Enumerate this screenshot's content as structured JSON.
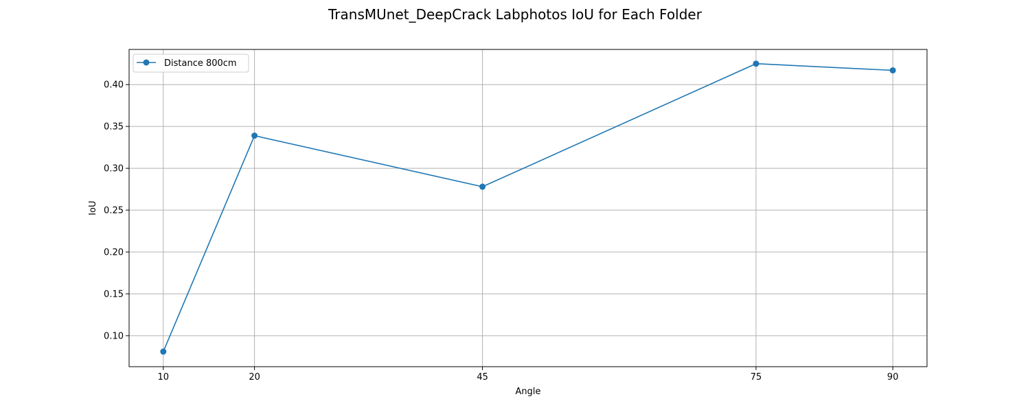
{
  "chart_data": {
    "type": "line",
    "title": "TransMUnet_DeepCrack Labphotos IoU for Each Folder",
    "xlabel": "Angle",
    "ylabel": "IoU",
    "x": [
      10,
      20,
      45,
      75,
      90
    ],
    "x_ticks": [
      "10",
      "20",
      "45",
      "75",
      "90"
    ],
    "xlim": [
      6.25,
      93.75
    ],
    "ylim": [
      0.063,
      0.442
    ],
    "y_ticks": [
      "0.10",
      "0.15",
      "0.20",
      "0.25",
      "0.30",
      "0.35",
      "0.40"
    ],
    "grid": true,
    "legend_position": "upper-left",
    "series": [
      {
        "name": "Distance 800cm",
        "color": "#1f77b4",
        "marker": "circle",
        "values": [
          0.081,
          0.339,
          0.278,
          0.425,
          0.417
        ]
      }
    ]
  }
}
